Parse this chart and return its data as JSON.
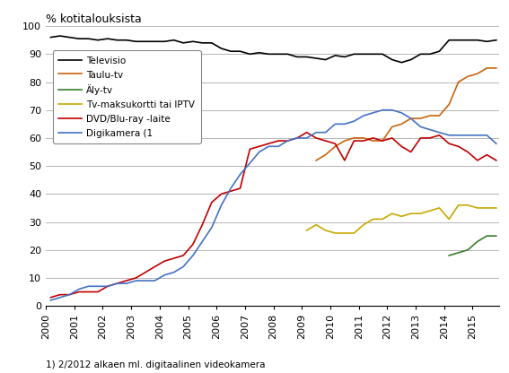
{
  "title": "% kotitalouksista",
  "footnote": "1) 2/2012 alkaen ml. digitaalinen videokamera",
  "ylim": [
    0,
    100
  ],
  "yticks": [
    0,
    10,
    20,
    30,
    40,
    50,
    60,
    70,
    80,
    90,
    100
  ],
  "xlim": [
    2000,
    2015.92
  ],
  "xtick_positions": [
    2000,
    2001,
    2002,
    2003,
    2004,
    2005,
    2006,
    2007,
    2008,
    2009,
    2010,
    2011,
    2012,
    2013,
    2014,
    2015
  ],
  "xtick_labels": [
    "2000",
    "2001",
    "2002",
    "2003",
    "2004",
    "2005",
    "2006",
    "2007",
    "2008",
    "2009",
    "2010",
    "2011",
    "2012",
    "2013",
    "2014",
    "2015"
  ],
  "legend_labels": [
    "Televisio",
    "Taulu-tv",
    "Äly-tv",
    "Tv-maksukortti tai IPTV",
    "DVD/Blu-ray -laite",
    "Digikamera (1"
  ],
  "colors": {
    "televisio": "#000000",
    "taulu_tv": "#c8640a",
    "aly_tv": "#3a7d2c",
    "tv_maksu": "#c8a800",
    "dvd": "#c00000",
    "digikamera": "#4472c4"
  },
  "series": {
    "televisio": {
      "x": [
        2000.17,
        2000.5,
        2000.83,
        2001.17,
        2001.5,
        2001.83,
        2002.17,
        2002.5,
        2002.83,
        2003.17,
        2003.5,
        2003.83,
        2004.17,
        2004.5,
        2004.83,
        2005.17,
        2005.5,
        2005.83,
        2006.17,
        2006.5,
        2006.83,
        2007.17,
        2007.5,
        2007.83,
        2008.17,
        2008.5,
        2008.83,
        2009.17,
        2009.5,
        2009.83,
        2010.17,
        2010.5,
        2010.83,
        2011.17,
        2011.5,
        2011.83,
        2012.17,
        2012.5,
        2012.83,
        2013.17,
        2013.5,
        2013.83,
        2014.17,
        2014.5,
        2014.83,
        2015.17,
        2015.5,
        2015.83
      ],
      "y": [
        96,
        96.5,
        96,
        95.5,
        95.5,
        95,
        95.5,
        95,
        95,
        94.5,
        94.5,
        94.5,
        94.5,
        95,
        94,
        94.5,
        94,
        94,
        92,
        91,
        91,
        90,
        90.5,
        90,
        90,
        90,
        89,
        89,
        88.5,
        88,
        89.5,
        89,
        90,
        90,
        90,
        90,
        88,
        87,
        88,
        90,
        90,
        91,
        95,
        95,
        95,
        95,
        94.5,
        95
      ]
    },
    "taulu_tv": {
      "x": [
        2009.5,
        2009.83,
        2010.17,
        2010.5,
        2010.83,
        2011.17,
        2011.5,
        2011.83,
        2012.17,
        2012.5,
        2012.83,
        2013.17,
        2013.5,
        2013.83,
        2014.17,
        2014.5,
        2014.83,
        2015.17,
        2015.5,
        2015.83
      ],
      "y": [
        52,
        54,
        57,
        59,
        60,
        60,
        59,
        59,
        64,
        65,
        67,
        67,
        68,
        68,
        72,
        80,
        82,
        83,
        85,
        85
      ]
    },
    "aly_tv": {
      "x": [
        2014.17,
        2014.5,
        2014.83,
        2015.17,
        2015.5,
        2015.83
      ],
      "y": [
        18,
        19,
        20,
        23,
        25,
        25
      ]
    },
    "tv_maksu": {
      "x": [
        2009.17,
        2009.5,
        2009.83,
        2010.17,
        2010.5,
        2010.83,
        2011.17,
        2011.5,
        2011.83,
        2012.17,
        2012.5,
        2012.83,
        2013.17,
        2013.5,
        2013.83,
        2014.17,
        2014.5,
        2014.83,
        2015.17,
        2015.5,
        2015.83
      ],
      "y": [
        27,
        29,
        27,
        26,
        26,
        26,
        29,
        31,
        31,
        33,
        32,
        33,
        33,
        34,
        35,
        31,
        36,
        36,
        35,
        35,
        35
      ]
    },
    "dvd": {
      "x": [
        2000.17,
        2000.5,
        2000.83,
        2001.17,
        2001.5,
        2001.83,
        2002.17,
        2002.5,
        2002.83,
        2003.17,
        2003.5,
        2003.83,
        2004.17,
        2004.5,
        2004.83,
        2005.17,
        2005.5,
        2005.83,
        2006.17,
        2006.5,
        2006.83,
        2007.17,
        2007.5,
        2007.83,
        2008.17,
        2008.5,
        2008.83,
        2009.17,
        2009.5,
        2009.83,
        2010.17,
        2010.5,
        2010.83,
        2011.17,
        2011.5,
        2011.83,
        2012.17,
        2012.5,
        2012.83,
        2013.17,
        2013.5,
        2013.83,
        2014.17,
        2014.5,
        2014.83,
        2015.17,
        2015.5,
        2015.83
      ],
      "y": [
        3,
        4,
        4,
        5,
        5,
        5,
        7,
        8,
        9,
        10,
        12,
        14,
        16,
        17,
        18,
        22,
        29,
        37,
        40,
        41,
        42,
        56,
        57,
        58,
        59,
        59,
        60,
        62,
        60,
        59,
        58,
        52,
        59,
        59,
        60,
        59,
        60,
        57,
        55,
        60,
        60,
        61,
        58,
        57,
        55,
        52,
        54,
        52
      ]
    },
    "digikamera": {
      "x": [
        2000.17,
        2000.5,
        2000.83,
        2001.17,
        2001.5,
        2001.83,
        2002.17,
        2002.5,
        2002.83,
        2003.17,
        2003.5,
        2003.83,
        2004.17,
        2004.5,
        2004.83,
        2005.17,
        2005.5,
        2005.83,
        2006.17,
        2006.5,
        2006.83,
        2007.17,
        2007.5,
        2007.83,
        2008.17,
        2008.5,
        2008.83,
        2009.17,
        2009.5,
        2009.83,
        2010.17,
        2010.5,
        2010.83,
        2011.17,
        2011.5,
        2011.83,
        2012.17,
        2012.5,
        2012.83,
        2013.17,
        2013.5,
        2013.83,
        2014.17,
        2014.5,
        2014.83,
        2015.17,
        2015.5,
        2015.83
      ],
      "y": [
        2,
        3,
        4,
        6,
        7,
        7,
        7,
        8,
        8,
        9,
        9,
        9,
        11,
        12,
        14,
        18,
        23,
        28,
        36,
        42,
        47,
        51,
        55,
        57,
        57,
        59,
        60,
        60,
        62,
        62,
        65,
        65,
        66,
        68,
        69,
        70,
        70,
        69,
        67,
        64,
        63,
        62,
        61,
        61,
        61,
        61,
        61,
        58
      ]
    }
  }
}
